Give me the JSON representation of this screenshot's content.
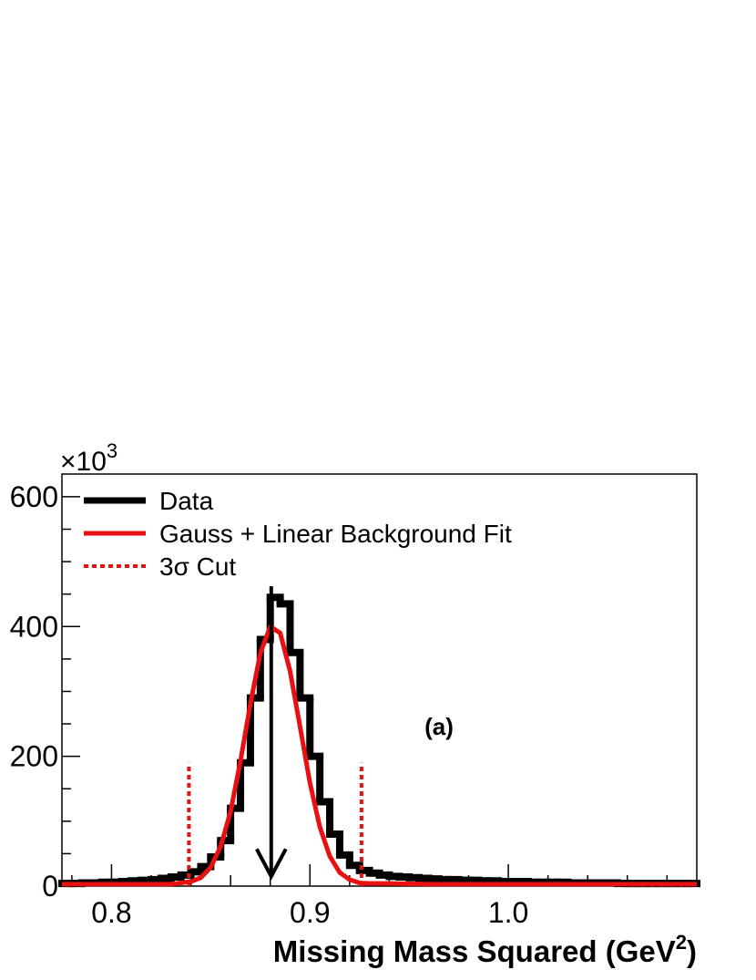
{
  "chart_data": {
    "type": "histogram",
    "name": "Data",
    "color": "#000000",
    "bins": [
      0.775,
      0.78,
      0.785,
      0.79,
      0.795,
      0.8,
      0.805,
      0.81,
      0.815,
      0.82,
      0.825,
      0.83,
      0.835,
      0.84,
      0.845,
      0.85,
      0.855,
      0.86,
      0.865,
      0.87,
      0.875,
      0.88,
      0.885,
      0.89,
      0.895,
      0.9,
      0.905,
      0.91,
      0.915,
      0.92,
      0.925,
      0.93,
      0.935,
      0.94,
      0.945,
      0.95,
      0.955,
      0.96,
      0.965,
      0.97,
      0.975,
      0.98,
      0.985,
      0.99,
      0.995,
      1.0,
      1.005,
      1.01,
      1.015,
      1.02,
      1.025,
      1.03,
      1.035,
      1.04,
      1.045,
      1.05,
      1.055,
      1.06,
      1.065,
      1.07,
      1.075,
      1.08,
      1.085,
      1.09,
      1.095
    ],
    "counts": [
      4,
      4,
      5,
      5,
      6,
      6,
      7,
      8,
      9,
      10,
      12,
      14,
      17,
      22,
      30,
      45,
      70,
      120,
      190,
      290,
      380,
      445,
      435,
      360,
      290,
      200,
      130,
      80,
      48,
      32,
      24,
      20,
      17,
      15,
      14,
      13,
      12,
      11,
      10,
      10,
      9,
      9,
      8,
      8,
      7,
      7,
      7,
      6,
      6,
      6,
      6,
      5,
      5,
      5,
      5,
      5,
      4,
      4,
      4,
      4,
      4,
      4,
      4,
      4
    ],
    "fit": {
      "name": "Gauss + Linear Background Fit",
      "color": "#e81010",
      "x": [
        0.775,
        0.8,
        0.82,
        0.83,
        0.84,
        0.845,
        0.85,
        0.855,
        0.86,
        0.865,
        0.87,
        0.875,
        0.88,
        0.885,
        0.89,
        0.895,
        0.9,
        0.905,
        0.91,
        0.915,
        0.92,
        0.925,
        0.93,
        0.94,
        0.96,
        1.0,
        1.05,
        1.095
      ],
      "values": [
        3,
        3,
        3,
        3,
        7,
        13,
        29,
        61,
        115,
        193,
        281,
        359,
        400,
        390,
        331,
        246,
        159,
        91,
        46,
        21,
        10,
        5,
        4,
        4,
        3,
        3,
        3,
        3
      ]
    },
    "cut": {
      "name": "3σ Cut",
      "color": "#e81010",
      "x": [
        0.839,
        0.926
      ],
      "height": 190
    },
    "arrow": {
      "x": 0.8805,
      "y": [
        462,
        15
      ]
    },
    "annotation": "(a)",
    "xlabel": "Missing Mass Squared (GeV",
    "xlabel_sup": "2",
    "xlabel_end": ")",
    "y_multiplier": "×10",
    "y_multiplier_exp": "3",
    "xlim": [
      0.775,
      1.095
    ],
    "ylim": [
      0,
      635
    ],
    "xticks": [
      0.8,
      0.9,
      {
        "value": 1,
        "label": "1.0"
      }
    ],
    "xminorticks": [
      0.78,
      0.82,
      0.84,
      0.86,
      0.88,
      0.92,
      0.94,
      0.96,
      0.98,
      1.02,
      1.04,
      1.06,
      1.08
    ],
    "yticks": [
      0,
      200,
      400,
      600
    ],
    "yminorticks": [
      50,
      100,
      150,
      250,
      300,
      350,
      450,
      500,
      550
    ]
  }
}
